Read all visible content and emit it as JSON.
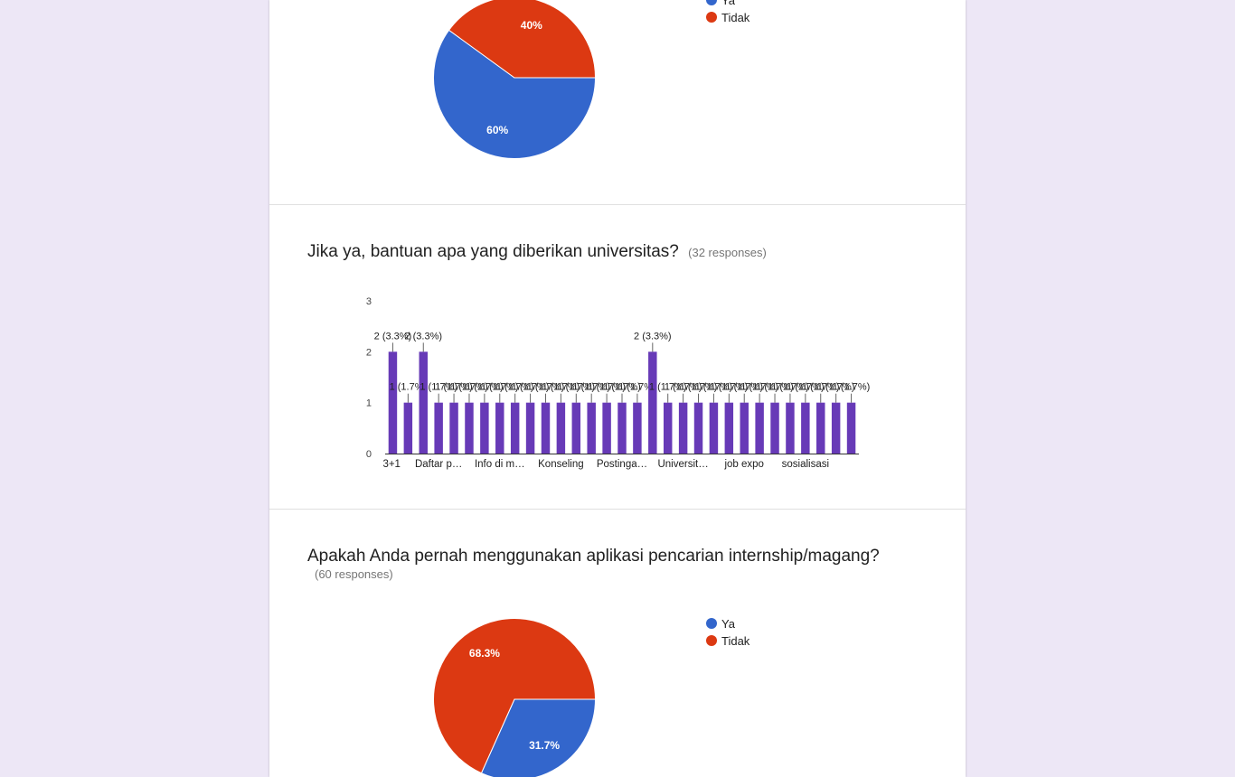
{
  "colors": {
    "blue": "#3366cc",
    "red": "#dc3912",
    "purple": "#673ab7",
    "background": "#ede7f6"
  },
  "sections": [
    {
      "title": "",
      "responses": "",
      "legend": [
        {
          "label": "Ya",
          "color": "#3366cc"
        },
        {
          "label": "Tidak",
          "color": "#dc3912"
        }
      ]
    },
    {
      "title": "Jika ya, bantuan apa yang diberikan universitas?",
      "responses": "(32 responses)"
    },
    {
      "title": "Apakah Anda pernah menggunakan aplikasi pencarian internship/magang?",
      "responses": "(60 responses)",
      "legend": [
        {
          "label": "Ya",
          "color": "#3366cc"
        },
        {
          "label": "Tidak",
          "color": "#dc3912"
        }
      ]
    }
  ],
  "chart_data": [
    {
      "type": "pie",
      "labels": [
        "Ya",
        "Tidak"
      ],
      "values": [
        60,
        40
      ],
      "value_labels": [
        "60%",
        "40%"
      ],
      "colors": [
        "#3366cc",
        "#dc3912"
      ]
    },
    {
      "type": "bar",
      "categories": [
        "3+1",
        "",
        "",
        "Daftar p…",
        "",
        "",
        "",
        "Info di m…",
        "",
        "",
        "",
        "Konseling",
        "",
        "",
        "",
        "Postinga…",
        "",
        "",
        "",
        "Universit…",
        "",
        "",
        "",
        "job expo",
        "",
        "",
        "",
        "sosialisasi",
        "",
        "",
        ""
      ],
      "values": [
        2,
        1,
        2,
        1,
        1,
        1,
        1,
        1,
        1,
        1,
        1,
        1,
        1,
        1,
        1,
        1,
        1,
        2,
        1,
        1,
        1,
        1,
        1,
        1,
        1,
        1,
        1,
        1,
        1,
        1,
        1
      ],
      "value_labels": [
        "2 (3.3%)",
        "1 (1.7%)",
        "2 (3.3%)",
        "1 (1.7%)",
        "1 (1.7%)",
        "1 (1.7%)",
        "1 (1.7%)",
        "1 (1.7%)",
        "1 (1.7%)",
        "1 (1.7%)",
        "1 (1.7%)",
        "1 (1.7%)",
        "1 (1.7%)",
        "1 (1.7%)",
        "1 (1.7%)",
        "1 (1.7%)",
        "1 (1.7%)",
        "2 (3.3%)",
        "1 (1.7%)",
        "1 (1.7%)",
        "1 (1.7%)",
        "1 (1.7%)",
        "1 (1.7%)",
        "1 (1.7%)",
        "1 (1.7%)",
        "1 (1.7%)",
        "1 (1.7%)",
        "1 (1.7%)",
        "1 (1.7%)",
        "1 (1.7%)",
        "1 (1.7%)"
      ],
      "x_tick_labels": [
        "3+1",
        "Daftar p…",
        "Info di m…",
        "Konseling",
        "Postinga…",
        "Universit…",
        "job expo",
        "sosialisasi"
      ],
      "y_ticks": [
        0,
        1,
        2,
        3
      ],
      "ylim": [
        0,
        3
      ],
      "color": "#673ab7"
    },
    {
      "type": "pie",
      "labels": [
        "Ya",
        "Tidak"
      ],
      "values": [
        31.7,
        68.3
      ],
      "value_labels": [
        "31.7%",
        "68.3%"
      ],
      "colors": [
        "#3366cc",
        "#dc3912"
      ]
    }
  ]
}
